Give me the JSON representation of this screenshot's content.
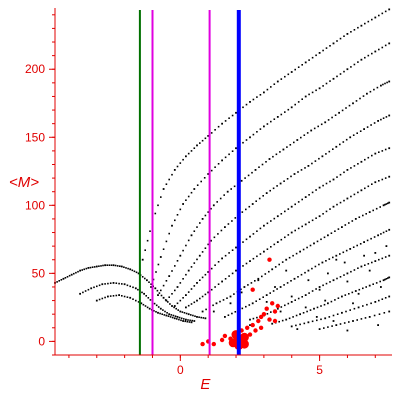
{
  "chart_data": {
    "type": "scatter",
    "xlabel": "E",
    "ylabel": "<M>",
    "xlim": [
      -4.5,
      7.6
    ],
    "ylim": [
      -10,
      245
    ],
    "x_ticks": [
      0,
      5
    ],
    "y_ticks": [
      0,
      50,
      100,
      150,
      200
    ],
    "grid": false,
    "legend": "none",
    "colors": {
      "axis": "#e00000",
      "dots": "#000000",
      "highlight": "#ff0000",
      "green_line": "#007000",
      "magenta_line": "#e000e0",
      "blue_line": "#0000ff"
    },
    "vertical_lines": [
      {
        "name": "green",
        "x": -1.45,
        "color": "#007000"
      },
      {
        "name": "magenta-left",
        "x": -1.0,
        "color": "#e000e0"
      },
      {
        "name": "magenta-right",
        "x": 1.05,
        "color": "#e000e0"
      },
      {
        "name": "blue",
        "x": 2.1,
        "color": "#0000ff"
      }
    ],
    "series": [
      {
        "points": [
          [
            -4.5,
            43
          ],
          [
            -4.2,
            46
          ],
          [
            -3.9,
            49
          ],
          [
            -3.6,
            52
          ],
          [
            -3.3,
            54
          ],
          [
            -3.0,
            55
          ],
          [
            -2.7,
            56
          ],
          [
            -2.4,
            56
          ],
          [
            -2.1,
            55
          ],
          [
            -1.8,
            53
          ],
          [
            -1.5,
            50
          ],
          [
            -1.2,
            45
          ],
          [
            -0.9,
            39
          ],
          [
            -0.6,
            32
          ],
          [
            -0.3,
            26
          ],
          [
            0.0,
            22
          ],
          [
            0.3,
            20
          ],
          [
            0.6,
            18
          ],
          [
            0.9,
            17
          ]
        ]
      },
      {
        "points": [
          [
            -3.6,
            35
          ],
          [
            -3.2,
            39
          ],
          [
            -2.8,
            42
          ],
          [
            -2.4,
            43
          ],
          [
            -2.0,
            42
          ],
          [
            -1.6,
            39
          ],
          [
            -1.3,
            35
          ],
          [
            -1.0,
            29
          ],
          [
            -0.7,
            24
          ],
          [
            -0.4,
            20
          ],
          [
            -0.1,
            18
          ],
          [
            0.2,
            16
          ],
          [
            0.5,
            15
          ]
        ]
      },
      {
        "points": [
          [
            -3.0,
            30
          ],
          [
            -2.6,
            33
          ],
          [
            -2.2,
            34
          ],
          [
            -1.8,
            32
          ],
          [
            -1.4,
            28
          ],
          [
            -1.1,
            24
          ],
          [
            -0.8,
            21
          ],
          [
            -0.5,
            19
          ],
          [
            -0.2,
            17
          ],
          [
            0.1,
            15
          ],
          [
            0.4,
            14
          ]
        ]
      },
      {
        "points": [
          [
            -1.35,
            60
          ],
          [
            -1.0,
            88
          ],
          [
            -0.6,
            112
          ],
          [
            -0.2,
            126
          ],
          [
            0.2,
            136
          ],
          [
            0.6,
            144
          ],
          [
            1.0,
            151
          ],
          [
            1.5,
            160
          ],
          [
            2.0,
            168
          ],
          [
            2.5,
            176
          ],
          [
            3.0,
            183
          ],
          [
            3.5,
            191
          ],
          [
            4.0,
            198
          ],
          [
            4.5,
            205
          ],
          [
            5.0,
            212
          ],
          [
            5.5,
            219
          ],
          [
            6.0,
            226
          ],
          [
            6.5,
            232
          ],
          [
            7.0,
            238
          ],
          [
            7.5,
            244
          ]
        ]
      },
      {
        "points": [
          [
            -1.05,
            40
          ],
          [
            -0.7,
            62
          ],
          [
            -0.3,
            85
          ],
          [
            0.1,
            101
          ],
          [
            0.5,
            112
          ],
          [
            1.0,
            123
          ],
          [
            1.5,
            133
          ],
          [
            2.0,
            142
          ],
          [
            2.5,
            150
          ],
          [
            3.0,
            158
          ],
          [
            3.5,
            165
          ],
          [
            4.0,
            172
          ],
          [
            4.5,
            180
          ],
          [
            5.0,
            186
          ],
          [
            5.5,
            193
          ],
          [
            6.0,
            200
          ],
          [
            6.5,
            207
          ],
          [
            7.0,
            213
          ],
          [
            7.5,
            219
          ]
        ]
      },
      {
        "points": [
          [
            -0.8,
            34
          ],
          [
            -0.4,
            48
          ],
          [
            0.0,
            63
          ],
          [
            0.4,
            78
          ],
          [
            0.8,
            90
          ],
          [
            1.2,
            100
          ],
          [
            1.7,
            110
          ],
          [
            2.2,
            118
          ],
          [
            2.7,
            126
          ],
          [
            3.2,
            134
          ],
          [
            3.7,
            141
          ],
          [
            4.2,
            148
          ],
          [
            4.7,
            155
          ],
          [
            5.2,
            161
          ],
          [
            5.7,
            168
          ],
          [
            6.2,
            175
          ],
          [
            6.7,
            182
          ],
          [
            7.2,
            188
          ],
          [
            7.5,
            191
          ]
        ]
      },
      {
        "points": [
          [
            -0.5,
            30
          ],
          [
            -0.1,
            40
          ],
          [
            0.3,
            52
          ],
          [
            0.7,
            63
          ],
          [
            1.1,
            74
          ],
          [
            1.6,
            84
          ],
          [
            2.1,
            93
          ],
          [
            2.6,
            101
          ],
          [
            3.1,
            109
          ],
          [
            3.6,
            116
          ],
          [
            4.1,
            123
          ],
          [
            4.6,
            129
          ],
          [
            5.1,
            136
          ],
          [
            5.6,
            143
          ],
          [
            6.1,
            150
          ],
          [
            6.6,
            156
          ],
          [
            7.1,
            162
          ],
          [
            7.5,
            166
          ]
        ]
      },
      {
        "points": [
          [
            -0.2,
            26
          ],
          [
            0.2,
            34
          ],
          [
            0.6,
            43
          ],
          [
            1.0,
            51
          ],
          [
            1.5,
            61
          ],
          [
            2.0,
            69
          ],
          [
            2.5,
            77
          ],
          [
            3.0,
            85
          ],
          [
            3.5,
            92
          ],
          [
            4.0,
            99
          ],
          [
            4.5,
            106
          ],
          [
            5.0,
            113
          ],
          [
            5.5,
            119
          ],
          [
            6.0,
            126
          ],
          [
            6.5,
            132
          ],
          [
            7.0,
            138
          ],
          [
            7.5,
            142
          ]
        ]
      },
      {
        "points": [
          [
            0.2,
            25
          ],
          [
            0.6,
            30
          ],
          [
            1.0,
            36
          ],
          [
            1.5,
            44
          ],
          [
            2.0,
            52
          ],
          [
            2.5,
            59
          ],
          [
            3.0,
            66
          ],
          [
            3.5,
            73
          ],
          [
            4.0,
            80
          ],
          [
            4.5,
            86
          ],
          [
            5.0,
            92
          ],
          [
            5.5,
            99
          ],
          [
            6.0,
            105
          ],
          [
            6.5,
            111
          ],
          [
            7.0,
            117
          ],
          [
            7.5,
            121
          ]
        ]
      },
      {
        "points": [
          [
            0.8,
            22
          ],
          [
            1.3,
            28
          ],
          [
            1.8,
            33
          ],
          [
            2.3,
            40
          ],
          [
            2.8,
            46
          ],
          [
            3.3,
            53
          ],
          [
            3.8,
            60
          ],
          [
            4.3,
            66
          ],
          [
            4.8,
            72
          ],
          [
            5.3,
            78
          ],
          [
            5.8,
            84
          ],
          [
            6.3,
            90
          ],
          [
            6.8,
            95
          ],
          [
            7.3,
            100
          ],
          [
            7.5,
            102
          ]
        ]
      },
      {
        "points": [
          [
            1.6,
            18
          ],
          [
            2.1,
            23
          ],
          [
            2.6,
            28
          ],
          [
            3.1,
            34
          ],
          [
            3.6,
            40
          ],
          [
            4.1,
            46
          ],
          [
            4.6,
            52
          ],
          [
            5.1,
            58
          ],
          [
            5.6,
            63
          ],
          [
            6.1,
            68
          ],
          [
            6.6,
            73
          ],
          [
            7.1,
            78
          ],
          [
            7.5,
            82
          ]
        ]
      },
      {
        "points": [
          [
            2.5,
            16
          ],
          [
            3.0,
            19
          ],
          [
            3.5,
            24
          ],
          [
            4.0,
            29
          ],
          [
            4.5,
            34
          ],
          [
            5.0,
            40
          ],
          [
            5.5,
            45
          ],
          [
            6.0,
            50
          ],
          [
            6.5,
            55
          ],
          [
            7.0,
            59
          ],
          [
            7.5,
            63
          ]
        ]
      },
      {
        "points": [
          [
            3.3,
            13
          ],
          [
            3.8,
            16
          ],
          [
            4.3,
            20
          ],
          [
            4.8,
            24
          ],
          [
            5.3,
            28
          ],
          [
            5.8,
            33
          ],
          [
            6.3,
            37
          ],
          [
            6.8,
            41
          ],
          [
            7.3,
            45
          ],
          [
            7.5,
            47
          ]
        ]
      },
      {
        "points": [
          [
            4.0,
            11
          ],
          [
            4.6,
            14
          ],
          [
            5.2,
            17
          ],
          [
            5.8,
            21
          ],
          [
            6.4,
            25
          ],
          [
            7.0,
            29
          ],
          [
            7.5,
            33
          ]
        ]
      },
      {
        "points": [
          [
            5.0,
            9
          ],
          [
            5.6,
            12
          ],
          [
            6.2,
            15
          ],
          [
            6.8,
            18
          ],
          [
            7.5,
            22
          ]
        ]
      },
      {
        "points": [
          [
            2.8,
            45
          ],
          [
            3.4,
            40
          ],
          [
            4.0,
            33
          ],
          [
            4.5,
            25
          ],
          [
            5.0,
            38
          ],
          [
            5.3,
            50
          ],
          [
            5.6,
            60
          ],
          [
            5.2,
            30
          ],
          [
            6.0,
            44
          ],
          [
            6.4,
            35
          ],
          [
            6.8,
            52
          ],
          [
            7.2,
            40
          ],
          [
            3.8,
            52
          ],
          [
            4.6,
            45
          ],
          [
            2.2,
            36
          ],
          [
            1.8,
            28
          ],
          [
            1.2,
            22
          ],
          [
            3.1,
            29
          ],
          [
            4.9,
            18
          ],
          [
            6.2,
            28
          ],
          [
            7.0,
            65
          ],
          [
            7.4,
            70
          ],
          [
            5.9,
            58
          ],
          [
            6.6,
            63
          ],
          [
            3.6,
            22
          ],
          [
            2.5,
            12
          ],
          [
            4.2,
            9
          ],
          [
            5.5,
            15
          ],
          [
            6.0,
            8
          ],
          [
            7.1,
            12
          ]
        ]
      },
      {
        "name": "highlight",
        "points": [
          [
            1.0,
            0
          ],
          [
            1.2,
            -2
          ],
          [
            1.5,
            1
          ],
          [
            1.6,
            4
          ],
          [
            1.8,
            2
          ],
          [
            1.9,
            -1
          ],
          [
            2.0,
            5
          ],
          [
            2.1,
            -3
          ],
          [
            2.1,
            2
          ],
          [
            2.2,
            8
          ],
          [
            2.3,
            3
          ],
          [
            2.3,
            -2
          ],
          [
            2.4,
            10
          ],
          [
            2.5,
            5
          ],
          [
            2.6,
            12
          ],
          [
            2.7,
            8
          ],
          [
            2.8,
            15
          ],
          [
            2.9,
            18
          ],
          [
            3.0,
            20
          ],
          [
            3.1,
            24
          ],
          [
            3.2,
            16
          ],
          [
            3.3,
            28
          ],
          [
            3.4,
            22
          ],
          [
            3.5,
            26
          ],
          [
            2.6,
            38
          ],
          [
            3.2,
            60
          ],
          [
            0.8,
            -2
          ],
          [
            3.4,
            15
          ],
          [
            2.9,
            10
          ]
        ]
      }
    ]
  }
}
